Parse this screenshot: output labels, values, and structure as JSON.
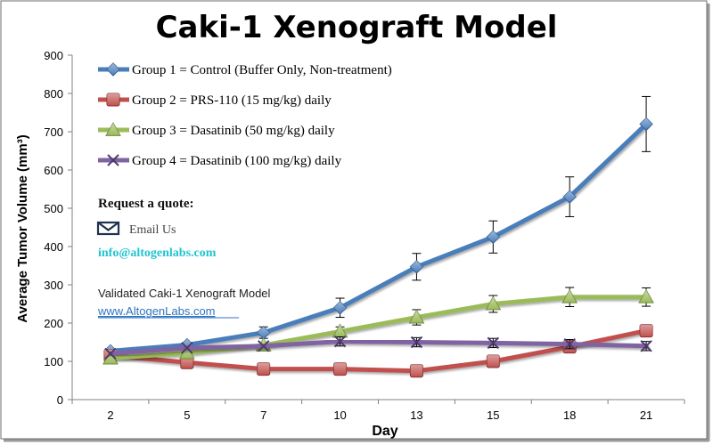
{
  "chart_data": {
    "type": "line",
    "title": "Caki-1 Xenograft Model",
    "xlabel": "Day",
    "ylabel": "Average Tumor Volume (mm³)",
    "categories": [
      "2",
      "5",
      "7",
      "10",
      "13",
      "15",
      "18",
      "21"
    ],
    "ylim": [
      0,
      900
    ],
    "yticks": [
      "0",
      "100",
      "200",
      "300",
      "400",
      "500",
      "600",
      "700",
      "800",
      "900"
    ],
    "grid": false,
    "legend_position": "top-left",
    "series": [
      {
        "name": "Group 1 = Control (Buffer Only, Non-treatment)",
        "color": "#4a7ebb",
        "marker": "diamond",
        "values": [
          127,
          143,
          175,
          240,
          347,
          425,
          530,
          720
        ],
        "errors": [
          0,
          0,
          15,
          25,
          35,
          42,
          52,
          72
        ]
      },
      {
        "name": "Group 2 = PRS-110 (15 mg/kg) daily",
        "color": "#c0504d",
        "marker": "square",
        "values": [
          115,
          97,
          80,
          80,
          75,
          100,
          138,
          180
        ],
        "errors": [
          0,
          0,
          0,
          0,
          0,
          0,
          0,
          0
        ]
      },
      {
        "name": "Group 3 = Dasatinib (50 mg/kg) daily",
        "color": "#9bbb59",
        "marker": "triangle",
        "values": [
          108,
          122,
          142,
          178,
          215,
          250,
          268,
          268
        ],
        "errors": [
          0,
          0,
          0,
          12,
          20,
          22,
          25,
          24
        ]
      },
      {
        "name": "Group 4 = Dasatinib (100 mg/kg) daily",
        "color": "#8064a2",
        "marker": "x",
        "values": [
          120,
          135,
          140,
          152,
          150,
          148,
          145,
          140
        ],
        "errors": [
          0,
          0,
          0,
          12,
          12,
          12,
          12,
          12
        ]
      }
    ]
  },
  "promo": {
    "heading": "Request a quote:",
    "email_label": "Email Us",
    "email_address": "info@altogenlabs.com",
    "caption": "Validated Caki-1 Xenograft Model",
    "website": "www.AltogenLabs.com",
    "icon": "envelope-icon",
    "email_color": "#22c4d2",
    "link_color": "#2e74c0"
  }
}
